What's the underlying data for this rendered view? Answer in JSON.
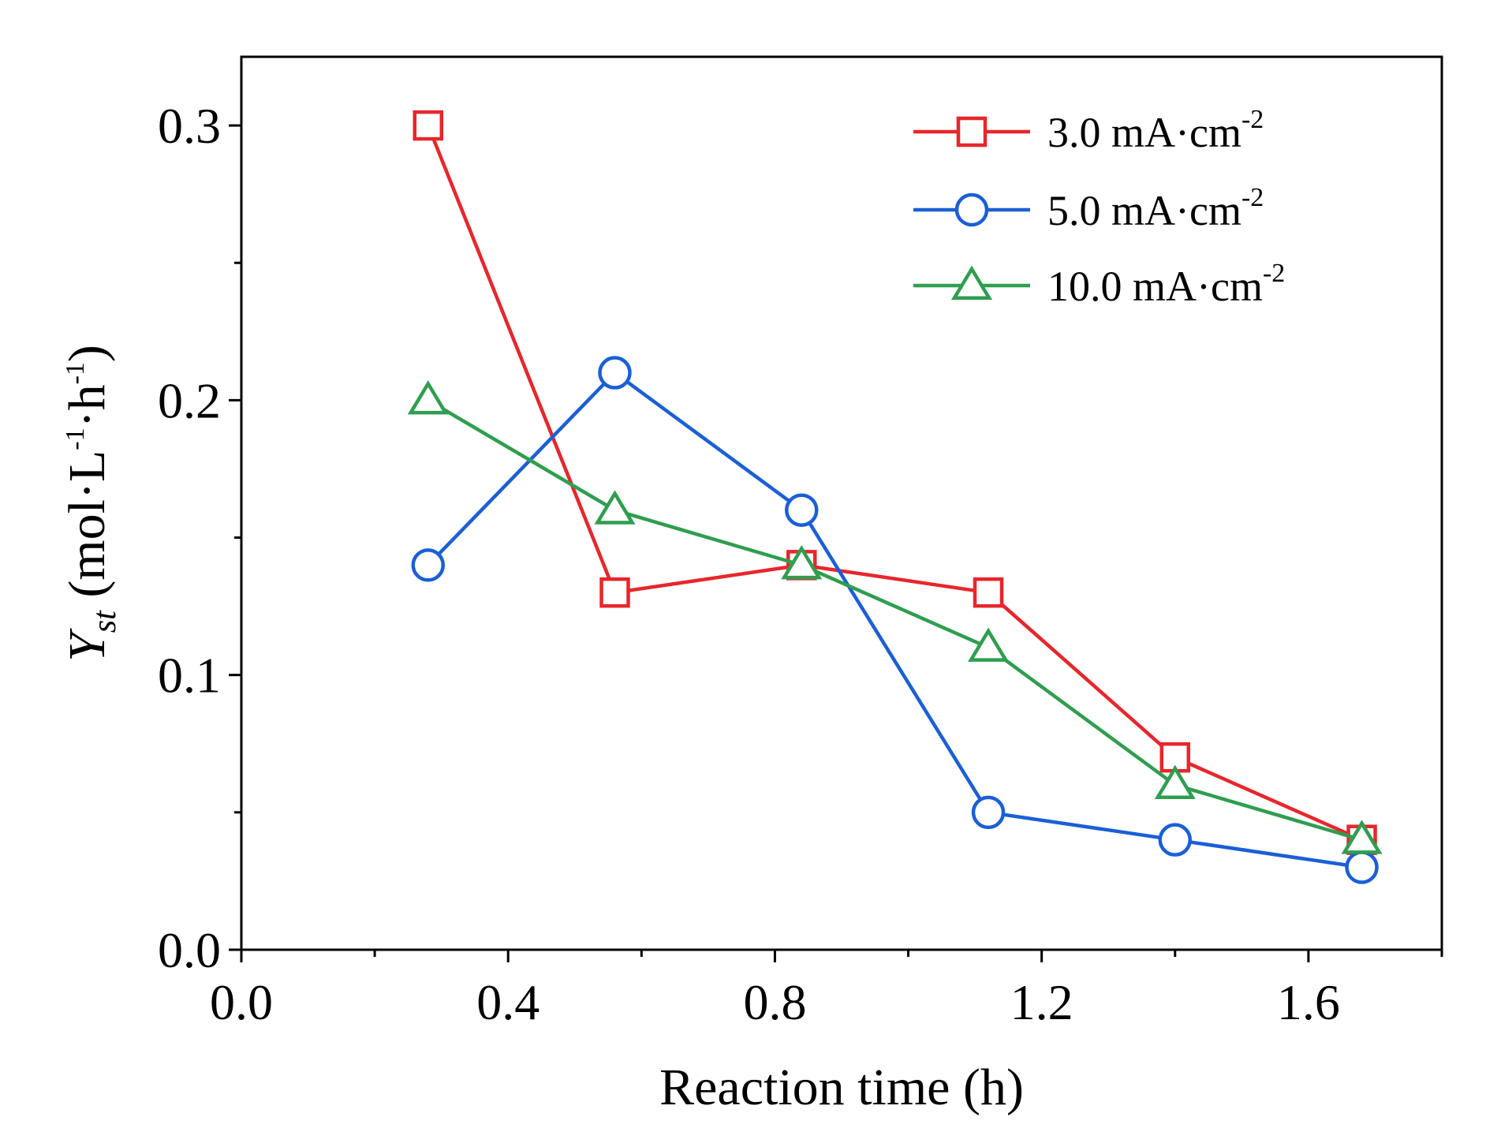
{
  "chart_data": {
    "type": "line",
    "xlabel": "Reaction time (h)",
    "ylabel": {
      "symbol": "Y",
      "subscript": "st",
      "unit_open": " (mol·L",
      "unit_sup1": "-1",
      "unit_mid": "·h",
      "unit_sup2": "-1",
      "unit_close": ")"
    },
    "xlim": [
      0.0,
      1.8
    ],
    "ylim": [
      0.0,
      0.325
    ],
    "xticks": [
      0.0,
      0.4,
      0.8,
      1.2,
      1.6
    ],
    "xtick_labels": [
      "0.0",
      "0.4",
      "0.8",
      "1.2",
      "1.6"
    ],
    "xminor": [
      0.2,
      0.6,
      1.0,
      1.4,
      1.8
    ],
    "yticks": [
      0.0,
      0.1,
      0.2,
      0.3
    ],
    "ytick_labels": [
      "0.0",
      "0.1",
      "0.2",
      "0.3"
    ],
    "yminor": [
      0.05,
      0.15,
      0.25
    ],
    "grid": false,
    "legend_position": "top-right",
    "x": [
      0.28,
      0.56,
      0.84,
      1.12,
      1.4,
      1.68
    ],
    "series": [
      {
        "name_main": "3.0 mA·cm",
        "name_sup": "-2",
        "marker": "square",
        "color": "#e8262b",
        "values": [
          0.3,
          0.13,
          0.14,
          0.13,
          0.07,
          0.04
        ]
      },
      {
        "name_main": "5.0 mA·cm",
        "name_sup": "-2",
        "marker": "circle",
        "color": "#1a5fd6",
        "values": [
          0.14,
          0.21,
          0.16,
          0.05,
          0.04,
          0.03
        ]
      },
      {
        "name_main": "10.0 mA·cm",
        "name_sup": "-2",
        "marker": "triangle",
        "color": "#2e9e4f",
        "values": [
          0.2,
          0.16,
          0.14,
          0.11,
          0.06,
          0.04
        ]
      }
    ]
  }
}
